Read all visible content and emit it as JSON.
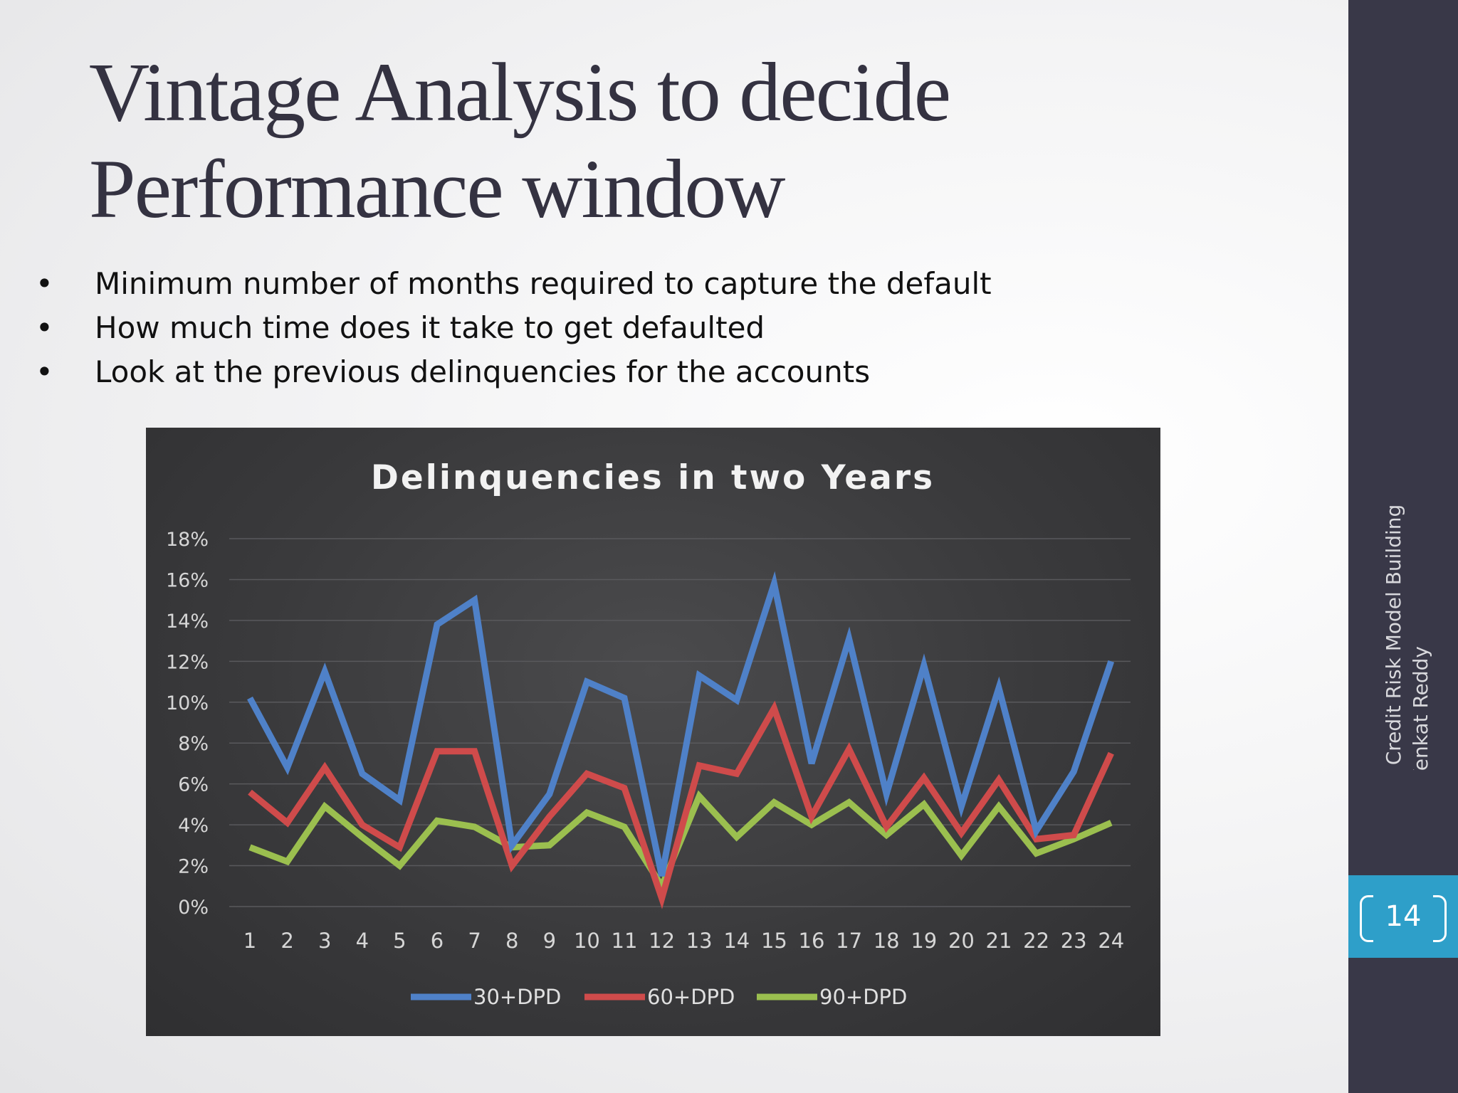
{
  "slide": {
    "title_line1": "Vintage Analysis to decide",
    "title_line2": "Performance window",
    "bullets": [
      "Minimum number of months required to capture the default",
      "How much time does it take to get defaulted",
      "Look at the previous delinquencies for the accounts"
    ],
    "footer_line1": "Credit Risk Model Building",
    "footer_line2": "Venkat Reddy",
    "page_number": "14"
  },
  "colors": {
    "sidebar": "#393848",
    "page_badge": "#2e9fc9",
    "chart_background": "#3a3a3c"
  },
  "chart_data": {
    "type": "line",
    "title": "Delinquencies in two Years",
    "x": [
      "1",
      "2",
      "3",
      "4",
      "5",
      "6",
      "7",
      "8",
      "9",
      "10",
      "11",
      "12",
      "13",
      "14",
      "15",
      "16",
      "17",
      "18",
      "19",
      "20",
      "21",
      "22",
      "23",
      "24"
    ],
    "ylim": [
      0,
      18
    ],
    "yticks": [
      "0%",
      "2%",
      "4%",
      "6%",
      "8%",
      "10%",
      "12%",
      "14%",
      "16%",
      "18%"
    ],
    "grid": true,
    "legend_position": "bottom",
    "series": [
      {
        "name": "30+DPD",
        "color": "#4f81c8",
        "values": [
          10.2,
          6.8,
          11.5,
          6.5,
          5.2,
          13.8,
          15.0,
          3.0,
          5.5,
          11.0,
          10.2,
          1.5,
          11.3,
          10.1,
          15.8,
          7.0,
          13.1,
          5.5,
          11.8,
          4.9,
          10.7,
          3.7,
          6.6,
          12.0
        ]
      },
      {
        "name": "60+DPD",
        "color": "#cf4b4b",
        "values": [
          5.6,
          4.1,
          6.8,
          4.0,
          2.9,
          7.6,
          7.6,
          2.0,
          4.4,
          6.5,
          5.8,
          0.4,
          6.9,
          6.5,
          9.7,
          4.4,
          7.7,
          3.9,
          6.3,
          3.6,
          6.2,
          3.3,
          3.5,
          7.5
        ]
      },
      {
        "name": "90+DPD",
        "color": "#9bbf4f",
        "values": [
          2.9,
          2.2,
          4.9,
          3.4,
          2.0,
          4.2,
          3.9,
          2.9,
          3.0,
          4.6,
          3.9,
          1.0,
          5.4,
          3.4,
          5.1,
          4.0,
          5.1,
          3.5,
          5.0,
          2.5,
          4.9,
          2.6,
          3.3,
          4.1
        ]
      }
    ]
  }
}
